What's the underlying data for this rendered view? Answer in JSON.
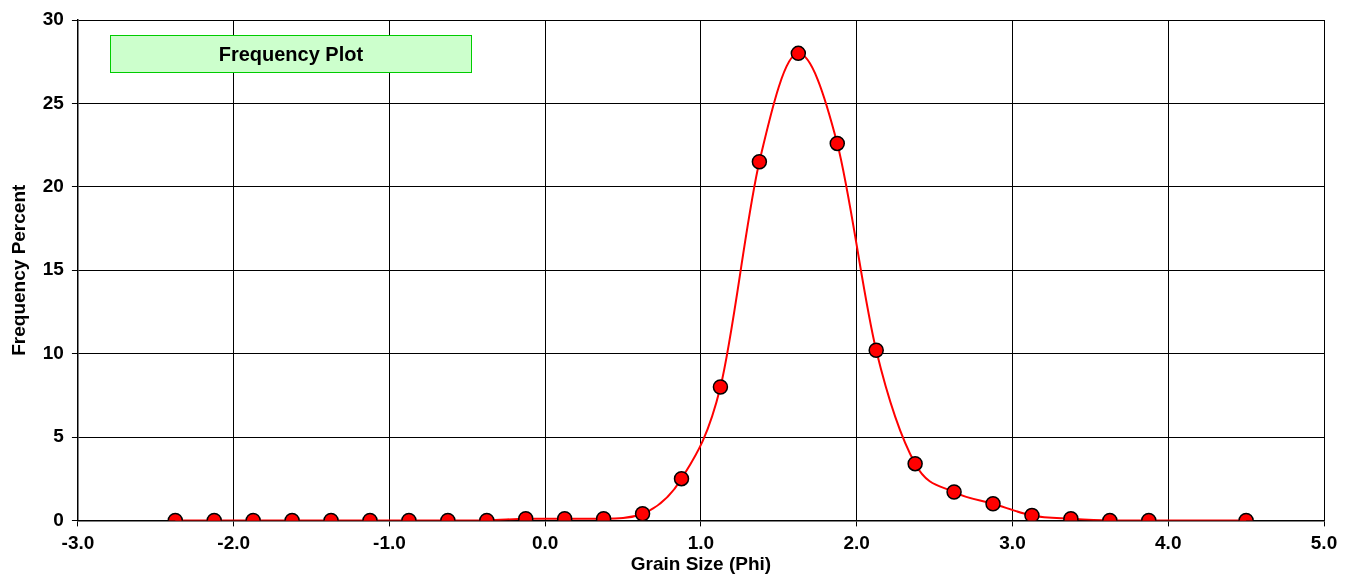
{
  "chart_data": {
    "type": "line",
    "title": "Frequency Plot",
    "xlabel": "Grain Size (Phi)",
    "ylabel": "Frequency Percent",
    "x": [
      -2.375,
      -2.125,
      -1.875,
      -1.625,
      -1.375,
      -1.125,
      -0.875,
      -0.625,
      -0.375,
      -0.125,
      0.125,
      0.375,
      0.625,
      0.875,
      1.125,
      1.375,
      1.625,
      1.875,
      2.125,
      2.375,
      2.625,
      2.875,
      3.125,
      3.375,
      3.625,
      3.875,
      4.5
    ],
    "series": [
      {
        "color": "#ff0000",
        "values": [
          0,
          0,
          0,
          0,
          0,
          0,
          0,
          0,
          0,
          0.1,
          0.1,
          0.1,
          0.4,
          2.5,
          8.0,
          21.5,
          28.0,
          22.6,
          10.2,
          3.4,
          1.7,
          1.0,
          0.3,
          0.1,
          0,
          0,
          0
        ]
      }
    ],
    "xlim": [
      -3,
      5
    ],
    "xticks": [
      {
        "value": -3,
        "label": "-3.0"
      },
      {
        "value": -2,
        "label": "-2.0"
      },
      {
        "value": -1,
        "label": "-1.0"
      },
      {
        "value": 0,
        "label": "0.0"
      },
      {
        "value": 1,
        "label": "1.0"
      },
      {
        "value": 2,
        "label": "2.0"
      },
      {
        "value": 3,
        "label": "3.0"
      },
      {
        "value": 4,
        "label": "4.0"
      },
      {
        "value": 5,
        "label": "5.0"
      }
    ],
    "ylim": [
      0,
      30
    ],
    "yticks": [
      0,
      5,
      10,
      15,
      20,
      25,
      30
    ],
    "grid": true,
    "marker": "circle",
    "legend": false
  }
}
